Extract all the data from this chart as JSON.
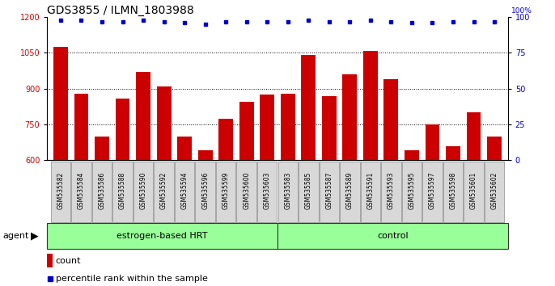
{
  "title": "GDS3855 / ILMN_1803988",
  "categories": [
    "GSM535582",
    "GSM535584",
    "GSM535586",
    "GSM535588",
    "GSM535590",
    "GSM535592",
    "GSM535594",
    "GSM535596",
    "GSM535599",
    "GSM535600",
    "GSM535603",
    "GSM535583",
    "GSM535585",
    "GSM535587",
    "GSM535589",
    "GSM535591",
    "GSM535593",
    "GSM535595",
    "GSM535597",
    "GSM535598",
    "GSM535601",
    "GSM535602"
  ],
  "bar_values": [
    1075,
    880,
    700,
    860,
    970,
    910,
    700,
    640,
    775,
    845,
    875,
    880,
    1040,
    870,
    960,
    1060,
    940,
    640,
    750,
    660,
    800,
    700
  ],
  "percentile_values": [
    98,
    98,
    97,
    97,
    98,
    97,
    96,
    95,
    97,
    97,
    97,
    97,
    98,
    97,
    97,
    98,
    97,
    96,
    96,
    97,
    97,
    97
  ],
  "bar_color": "#cc0000",
  "dot_color": "#0000cc",
  "ylim_left": [
    600,
    1200
  ],
  "ylim_right": [
    0,
    100
  ],
  "yticks_left": [
    600,
    750,
    900,
    1050,
    1200
  ],
  "yticks_right": [
    0,
    25,
    50,
    75,
    100
  ],
  "groups": [
    {
      "label": "estrogen-based HRT",
      "start": 0,
      "end": 11,
      "color": "#99ff99"
    },
    {
      "label": "control",
      "start": 11,
      "end": 22,
      "color": "#99ff99"
    }
  ],
  "agent_label": "agent",
  "legend_count_label": "count",
  "legend_percentile_label": "percentile rank within the sample",
  "background_color": "#ffffff",
  "grid_color": "#000000",
  "tick_label_color_left": "#cc0000",
  "tick_label_color_right": "#0000cc",
  "title_fontsize": 10,
  "bar_width": 0.7,
  "tick_box_color": "#d8d8d8",
  "tick_box_edge": "#888888",
  "group_edge": "#333333"
}
